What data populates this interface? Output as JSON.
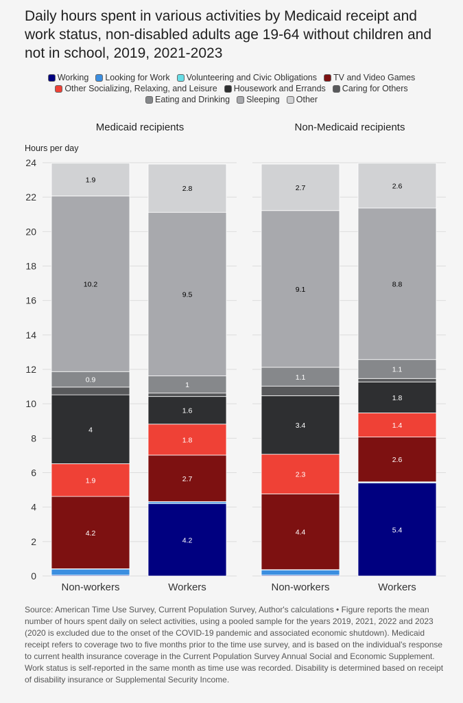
{
  "chart_data": {
    "type": "bar",
    "stacked": true,
    "title": "Daily hours spent in various activities by Medicaid receipt and work status, non-disabled adults age 19-64 without children and not in school, 2019, 2021-2023",
    "ylabel": "Hours per day",
    "ylim": [
      0,
      24
    ],
    "yticks": [
      "0",
      "2",
      "4",
      "6",
      "8",
      "10",
      "12",
      "14",
      "16",
      "18",
      "20",
      "22",
      "24"
    ],
    "panels": [
      {
        "name": "Medicaid recipients",
        "categories": [
          "Non-workers",
          "Workers"
        ]
      },
      {
        "name": "Non-Medicaid recipients",
        "categories": [
          "Non-workers",
          "Workers"
        ]
      }
    ],
    "series": [
      {
        "name": "Working",
        "color": "#000080",
        "values": [
          0.05,
          4.2,
          0.05,
          5.4
        ],
        "labels": [
          "",
          "4.2",
          "",
          "5.4"
        ],
        "label_color": "#ffffff"
      },
      {
        "name": "Looking for Work",
        "color": "#3b8ee0",
        "values": [
          0.35,
          0.1,
          0.3,
          0.05
        ],
        "labels": [
          "",
          "",
          "",
          ""
        ],
        "label_color": "#ffffff"
      },
      {
        "name": "Volunteering and Civic Obligations",
        "color": "#66dde6",
        "values": [
          0.02,
          0.02,
          0.02,
          0.02
        ],
        "labels": [
          "",
          "",
          "",
          ""
        ],
        "label_color": "#000000"
      },
      {
        "name": "TV and Video Games",
        "color": "#7d1111",
        "values": [
          4.2,
          2.7,
          4.4,
          2.6
        ],
        "labels": [
          "4.2",
          "2.7",
          "4.4",
          "2.6"
        ],
        "label_color": "#ffffff"
      },
      {
        "name": "Other Socializing, Relaxing, and Leisure",
        "color": "#ef4136",
        "values": [
          1.9,
          1.8,
          2.3,
          1.4
        ],
        "labels": [
          "1.9",
          "1.8",
          "2.3",
          "1.4"
        ],
        "label_color": "#ffffff"
      },
      {
        "name": "Housework and Errands",
        "color": "#2e2f31",
        "values": [
          4.0,
          1.6,
          3.4,
          1.8
        ],
        "labels": [
          "4",
          "1.6",
          "3.4",
          "1.8"
        ],
        "label_color": "#ffffff"
      },
      {
        "name": "Caring for Others",
        "color": "#58595b",
        "values": [
          0.45,
          0.2,
          0.55,
          0.2
        ],
        "labels": [
          "",
          "",
          "",
          ""
        ],
        "label_color": "#ffffff"
      },
      {
        "name": "Eating and Drinking",
        "color": "#86888b",
        "values": [
          0.9,
          1.0,
          1.1,
          1.1
        ],
        "labels": [
          "0.9",
          "1",
          "1.1",
          "1.1"
        ],
        "label_color": "#ffffff"
      },
      {
        "name": "Sleeping",
        "color": "#a8a9ad",
        "values": [
          10.2,
          9.5,
          9.1,
          8.8
        ],
        "labels": [
          "10.2",
          "9.5",
          "9.1",
          "8.8"
        ],
        "label_color": "#000000"
      },
      {
        "name": "Other",
        "color": "#d1d2d4",
        "values": [
          1.9,
          2.8,
          2.7,
          2.6
        ],
        "labels": [
          "1.9",
          "2.8",
          "2.7",
          "2.6"
        ],
        "label_color": "#000000"
      }
    ],
    "source": "Source: American Time Use Survey, Current Population Survey, Author's calculations • Figure reports the mean number of hours spent daily on select activities, using a pooled sample for the years 2019, 2021, 2022 and 2023 (2020 is excluded due to the onset of the COVID-19 pandemic and associated economic shutdown). Medicaid receipt refers to coverage two to five months prior to the time use survey, and is based on the individual's response to current health insurance coverage in the Current Population Survey Annual Social and Economic Supplement. Work status is self-reported in the same month as time use was recorded. Disability is determined based on receipt of disability insurance or Supplemental Security Income."
  }
}
